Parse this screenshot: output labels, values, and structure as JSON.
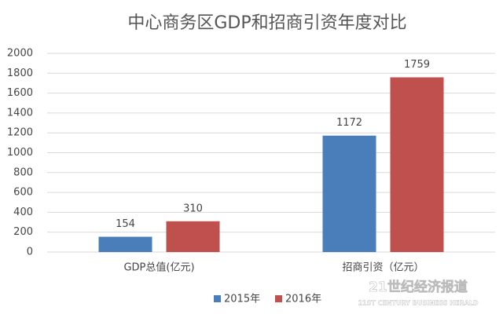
{
  "chart_data": {
    "type": "bar",
    "title": "中心商务区GDP和招商引资年度对比",
    "categories": [
      "GDP总值(亿元)",
      "招商引资（亿元）"
    ],
    "series": [
      {
        "name": "2015年",
        "color": "#4a7ebb",
        "values": [
          154,
          1172
        ]
      },
      {
        "name": "2016年",
        "color": "#c0504d",
        "values": [
          310,
          1759
        ]
      }
    ],
    "ylim": [
      0,
      2000
    ],
    "yticks": [
      0,
      200,
      400,
      600,
      800,
      1000,
      1200,
      1400,
      1600,
      1800,
      2000
    ],
    "grid": true,
    "legend": "bottom",
    "watermark": {
      "name": "21世纪经济报道",
      "subtitle": "21ST CENTURY BUSINESS HERALD"
    }
  }
}
